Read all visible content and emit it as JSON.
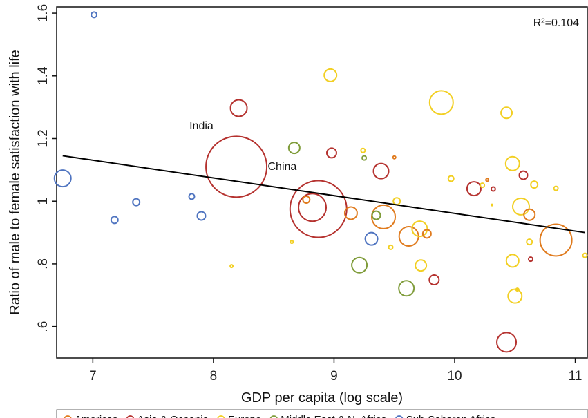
{
  "chart_data": {
    "type": "scatter",
    "title": "",
    "xlabel": "GDP per capita (log scale)",
    "ylabel": "Ratio of male to female satisfaction with life",
    "xlim": [
      6.7,
      11.1
    ],
    "ylim": [
      0.5,
      1.62
    ],
    "xticks": [
      7,
      8,
      9,
      10,
      11
    ],
    "yticks": [
      0.6,
      0.8,
      1.0,
      1.2,
      1.4,
      1.6
    ],
    "ytick_labels": [
      ".6",
      ".8",
      "1",
      "1.2",
      "1.4",
      "1.6"
    ],
    "grid": false,
    "legend_position": "bottom",
    "r_squared_label": "R²=0.104",
    "fit_line": {
      "x": [
        6.75,
        11.08
      ],
      "y": [
        1.145,
        0.9
      ]
    },
    "annotations": [
      {
        "text": "India",
        "x": 7.9,
        "y": 1.23
      },
      {
        "text": "China",
        "x": 8.57,
        "y": 1.1
      }
    ],
    "series": [
      {
        "name": "Americas",
        "color": "#e07b1e",
        "points": [
          {
            "x": 8.77,
            "y": 1.005,
            "r": 5
          },
          {
            "x": 9.14,
            "y": 0.962,
            "r": 9
          },
          {
            "x": 9.41,
            "y": 0.95,
            "r": 17
          },
          {
            "x": 9.62,
            "y": 0.888,
            "r": 14
          },
          {
            "x": 9.77,
            "y": 0.896,
            "r": 6
          },
          {
            "x": 9.5,
            "y": 1.14,
            "r": 2
          },
          {
            "x": 10.27,
            "y": 1.068,
            "r": 2
          },
          {
            "x": 10.62,
            "y": 0.957,
            "r": 8
          },
          {
            "x": 10.84,
            "y": 0.876,
            "r": 23
          }
        ]
      },
      {
        "name": "Asia & Oceania",
        "color": "#b5322f",
        "points": [
          {
            "x": 8.19,
            "y": 1.11,
            "r": 44
          },
          {
            "x": 8.87,
            "y": 0.975,
            "r": 41
          },
          {
            "x": 8.82,
            "y": 0.98,
            "r": 20
          },
          {
            "x": 8.21,
            "y": 1.297,
            "r": 12
          },
          {
            "x": 8.98,
            "y": 1.154,
            "r": 7
          },
          {
            "x": 9.39,
            "y": 1.096,
            "r": 11
          },
          {
            "x": 9.83,
            "y": 0.749,
            "r": 7
          },
          {
            "x": 10.16,
            "y": 1.04,
            "r": 10
          },
          {
            "x": 10.32,
            "y": 1.039,
            "r": 3
          },
          {
            "x": 10.57,
            "y": 1.083,
            "r": 6
          },
          {
            "x": 10.63,
            "y": 0.815,
            "r": 3
          },
          {
            "x": 10.43,
            "y": 0.55,
            "r": 14
          }
        ]
      },
      {
        "name": "Europe",
        "color": "#f2cf22",
        "points": [
          {
            "x": 8.15,
            "y": 0.793,
            "r": 2
          },
          {
            "x": 8.65,
            "y": 0.87,
            "r": 2
          },
          {
            "x": 8.97,
            "y": 1.402,
            "r": 9
          },
          {
            "x": 9.24,
            "y": 1.162,
            "r": 3
          },
          {
            "x": 9.47,
            "y": 0.853,
            "r": 3
          },
          {
            "x": 9.52,
            "y": 1.0,
            "r": 5
          },
          {
            "x": 9.71,
            "y": 0.912,
            "r": 11
          },
          {
            "x": 9.72,
            "y": 0.795,
            "r": 8
          },
          {
            "x": 9.89,
            "y": 1.315,
            "r": 17
          },
          {
            "x": 9.97,
            "y": 1.072,
            "r": 4
          },
          {
            "x": 10.23,
            "y": 1.051,
            "r": 3
          },
          {
            "x": 10.31,
            "y": 0.988,
            "r": 1
          },
          {
            "x": 10.43,
            "y": 1.282,
            "r": 8
          },
          {
            "x": 10.48,
            "y": 1.12,
            "r": 10
          },
          {
            "x": 10.48,
            "y": 0.81,
            "r": 9
          },
          {
            "x": 10.5,
            "y": 0.697,
            "r": 10
          },
          {
            "x": 10.52,
            "y": 0.718,
            "r": 2
          },
          {
            "x": 10.55,
            "y": 0.983,
            "r": 12
          },
          {
            "x": 10.62,
            "y": 0.87,
            "r": 4
          },
          {
            "x": 10.66,
            "y": 1.053,
            "r": 5
          },
          {
            "x": 10.84,
            "y": 1.041,
            "r": 3
          },
          {
            "x": 11.08,
            "y": 0.827,
            "r": 3
          }
        ]
      },
      {
        "name": "Middle East & N. Africa",
        "color": "#7f9c3a",
        "points": [
          {
            "x": 8.67,
            "y": 1.17,
            "r": 8
          },
          {
            "x": 9.25,
            "y": 1.138,
            "r": 3
          },
          {
            "x": 9.21,
            "y": 0.796,
            "r": 11
          },
          {
            "x": 9.35,
            "y": 0.955,
            "r": 6
          },
          {
            "x": 9.6,
            "y": 0.722,
            "r": 11
          }
        ]
      },
      {
        "name": "Sub-Saharan Africa",
        "color": "#4f74c0",
        "points": [
          {
            "x": 6.75,
            "y": 1.073,
            "r": 12
          },
          {
            "x": 7.01,
            "y": 1.595,
            "r": 4
          },
          {
            "x": 7.18,
            "y": 0.94,
            "r": 5
          },
          {
            "x": 7.36,
            "y": 0.997,
            "r": 5
          },
          {
            "x": 7.82,
            "y": 1.015,
            "r": 4
          },
          {
            "x": 7.9,
            "y": 0.953,
            "r": 6
          },
          {
            "x": 9.31,
            "y": 0.88,
            "r": 9
          }
        ]
      }
    ]
  }
}
